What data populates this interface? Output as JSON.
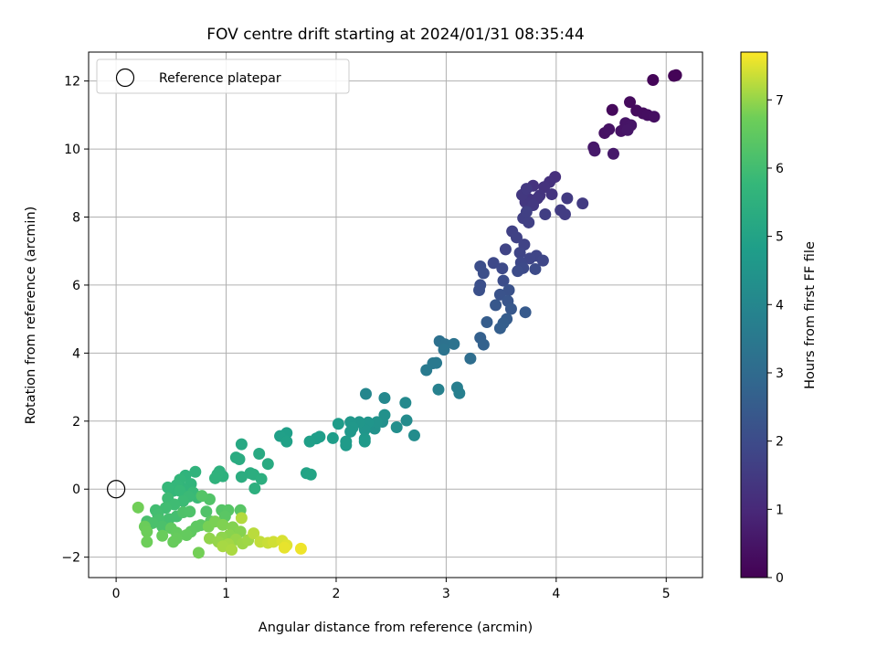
{
  "chart_data": {
    "type": "scatter",
    "title": "FOV centre drift starting at 2024/01/31 08:35:44",
    "xlabel": "Angular distance from reference (arcmin)",
    "ylabel": "Rotation from reference (arcmin)",
    "xlim": [
      -0.25,
      5.33
    ],
    "ylim": [
      -2.6,
      12.85
    ],
    "xticks": [
      0,
      1,
      2,
      3,
      4,
      5
    ],
    "yticks": [
      -2,
      0,
      2,
      4,
      6,
      8,
      10,
      12
    ],
    "xtick_labels": [
      "0",
      "1",
      "2",
      "3",
      "4",
      "5"
    ],
    "ytick_labels": [
      "−2",
      "0",
      "2",
      "4",
      "6",
      "8",
      "10",
      "12"
    ],
    "grid": true,
    "legend": {
      "position": "top-left",
      "entries": [
        "Reference platepar"
      ]
    },
    "reference_point": {
      "x": 0,
      "y": 0
    },
    "colorbar": {
      "label": "Hours from first FF file",
      "range": [
        0,
        7.7
      ],
      "ticks": [
        0,
        1,
        2,
        3,
        4,
        5,
        6,
        7
      ],
      "tick_labels": [
        "0",
        "1",
        "2",
        "3",
        "4",
        "5",
        "6",
        "7"
      ],
      "colormap": "viridis"
    },
    "points": [
      [
        5.07,
        12.15,
        0.05
      ],
      [
        5.09,
        12.17,
        0.08
      ],
      [
        4.88,
        12.03,
        0.1
      ],
      [
        4.51,
        11.15,
        0.2
      ],
      [
        4.67,
        11.38,
        0.25
      ],
      [
        4.73,
        11.13,
        0.28
      ],
      [
        4.79,
        11.05,
        0.3
      ],
      [
        4.83,
        11.0,
        0.32
      ],
      [
        4.89,
        10.95,
        0.35
      ],
      [
        4.44,
        10.47,
        0.4
      ],
      [
        4.48,
        10.58,
        0.42
      ],
      [
        4.59,
        10.53,
        0.45
      ],
      [
        4.63,
        10.76,
        0.48
      ],
      [
        4.68,
        10.7,
        0.5
      ],
      [
        4.65,
        10.56,
        0.52
      ],
      [
        4.34,
        10.05,
        0.55
      ],
      [
        4.35,
        9.95,
        0.58
      ],
      [
        4.52,
        9.86,
        0.6
      ],
      [
        3.99,
        9.18,
        1.2
      ],
      [
        3.94,
        9.03,
        1.22
      ],
      [
        3.89,
        8.88,
        1.25
      ],
      [
        3.79,
        8.92,
        1.28
      ],
      [
        3.85,
        8.63,
        1.3
      ],
      [
        3.96,
        8.67,
        1.32
      ],
      [
        3.75,
        8.53,
        1.35
      ],
      [
        3.83,
        8.55,
        1.37
      ],
      [
        3.72,
        8.44,
        1.4
      ],
      [
        3.69,
        8.65,
        1.42
      ],
      [
        3.73,
        8.83,
        1.45
      ],
      [
        3.79,
        8.35,
        1.47
      ],
      [
        4.1,
        8.55,
        1.5
      ],
      [
        4.24,
        8.4,
        1.52
      ],
      [
        4.04,
        8.2,
        1.55
      ],
      [
        4.08,
        8.08,
        1.57
      ],
      [
        3.9,
        8.08,
        1.6
      ],
      [
        3.7,
        7.97,
        1.62
      ],
      [
        3.75,
        7.84,
        1.65
      ],
      [
        3.73,
        8.15,
        1.67
      ],
      [
        3.6,
        7.58,
        1.7
      ],
      [
        3.64,
        7.4,
        1.72
      ],
      [
        3.71,
        7.19,
        1.75
      ],
      [
        3.54,
        7.05,
        1.77
      ],
      [
        3.67,
        6.95,
        1.8
      ],
      [
        3.82,
        6.86,
        1.82
      ],
      [
        3.76,
        6.78,
        1.85
      ],
      [
        3.88,
        6.72,
        1.87
      ],
      [
        3.68,
        6.66,
        1.9
      ],
      [
        3.43,
        6.65,
        1.92
      ],
      [
        3.51,
        6.49,
        1.95
      ],
      [
        3.7,
        6.5,
        1.97
      ],
      [
        3.81,
        6.47,
        2.0
      ],
      [
        3.65,
        6.41,
        2.02
      ],
      [
        3.52,
        6.13,
        2.05
      ],
      [
        3.31,
        6.55,
        2.07
      ],
      [
        3.34,
        6.35,
        2.1
      ],
      [
        3.31,
        6.0,
        2.12
      ],
      [
        3.3,
        5.85,
        2.15
      ],
      [
        3.57,
        5.85,
        2.2
      ],
      [
        3.49,
        5.72,
        2.25
      ],
      [
        3.56,
        5.53,
        2.3
      ],
      [
        3.45,
        5.41,
        2.35
      ],
      [
        3.59,
        5.3,
        2.4
      ],
      [
        3.72,
        5.2,
        2.45
      ],
      [
        3.55,
        5.0,
        2.5
      ],
      [
        3.37,
        4.91,
        2.55
      ],
      [
        3.52,
        4.88,
        2.57
      ],
      [
        3.49,
        4.73,
        2.6
      ],
      [
        3.31,
        4.45,
        2.65
      ],
      [
        3.34,
        4.25,
        2.7
      ],
      [
        3.22,
        3.84,
        3.1
      ],
      [
        2.94,
        4.35,
        3.2
      ],
      [
        2.99,
        4.26,
        3.25
      ],
      [
        3.07,
        4.27,
        3.3
      ],
      [
        2.98,
        4.1,
        3.35
      ],
      [
        2.88,
        3.7,
        3.5
      ],
      [
        2.91,
        3.71,
        3.52
      ],
      [
        2.82,
        3.5,
        3.55
      ],
      [
        3.1,
        2.99,
        3.7
      ],
      [
        3.12,
        2.82,
        3.75
      ],
      [
        2.93,
        2.93,
        3.8
      ],
      [
        2.27,
        2.8,
        4.0
      ],
      [
        2.44,
        2.68,
        4.05
      ],
      [
        2.63,
        2.54,
        4.1
      ],
      [
        2.64,
        2.02,
        4.15
      ],
      [
        2.71,
        1.58,
        4.2
      ],
      [
        2.55,
        1.82,
        4.25
      ],
      [
        2.42,
        1.98,
        4.3
      ],
      [
        2.44,
        2.18,
        4.35
      ],
      [
        2.35,
        1.78,
        4.4
      ],
      [
        2.37,
        1.97,
        4.45
      ],
      [
        2.29,
        1.96,
        4.5
      ],
      [
        2.26,
        1.75,
        4.52
      ],
      [
        2.21,
        1.97,
        4.55
      ],
      [
        2.13,
        1.97,
        4.57
      ],
      [
        2.15,
        1.81,
        4.6
      ],
      [
        2.13,
        1.69,
        4.62
      ],
      [
        2.26,
        1.48,
        4.65
      ],
      [
        2.26,
        1.4,
        4.67
      ],
      [
        2.09,
        1.29,
        4.7
      ],
      [
        2.09,
        1.4,
        4.72
      ],
      [
        2.02,
        1.92,
        4.75
      ],
      [
        1.97,
        1.5,
        4.77
      ],
      [
        1.85,
        1.54,
        4.8
      ],
      [
        1.82,
        1.49,
        4.82
      ],
      [
        1.76,
        1.4,
        4.85
      ],
      [
        1.55,
        1.65,
        4.87
      ],
      [
        1.49,
        1.56,
        4.9
      ],
      [
        1.55,
        1.4,
        4.92
      ],
      [
        1.73,
        0.47,
        5.0
      ],
      [
        1.77,
        0.43,
        5.05
      ],
      [
        1.14,
        1.32,
        5.2
      ],
      [
        1.3,
        1.04,
        5.25
      ],
      [
        1.38,
        0.74,
        5.27
      ],
      [
        1.09,
        0.93,
        5.3
      ],
      [
        1.12,
        0.88,
        5.32
      ],
      [
        1.22,
        0.47,
        5.35
      ],
      [
        1.14,
        0.36,
        5.37
      ],
      [
        1.25,
        0.43,
        5.4
      ],
      [
        1.32,
        0.3,
        5.42
      ],
      [
        1.26,
        0.02,
        5.45
      ],
      [
        0.94,
        0.52,
        5.5
      ],
      [
        0.97,
        0.38,
        5.52
      ],
      [
        0.92,
        0.43,
        5.55
      ],
      [
        0.9,
        0.32,
        5.57
      ],
      [
        0.72,
        0.51,
        5.6
      ],
      [
        0.63,
        0.4,
        5.62
      ],
      [
        0.68,
        0.15,
        5.65
      ],
      [
        0.61,
        0.02,
        5.67
      ],
      [
        0.58,
        0.28,
        5.7
      ],
      [
        0.55,
        0.12,
        5.72
      ],
      [
        0.52,
        -0.05,
        5.75
      ],
      [
        0.47,
        0.05,
        5.77
      ],
      [
        0.58,
        -0.05,
        5.8
      ],
      [
        0.7,
        -0.1,
        5.82
      ],
      [
        0.74,
        -0.25,
        5.85
      ],
      [
        0.66,
        -0.22,
        5.87
      ],
      [
        0.61,
        -0.35,
        5.9
      ],
      [
        0.47,
        -0.27,
        5.92
      ],
      [
        0.53,
        -0.45,
        5.95
      ],
      [
        0.45,
        -0.55,
        5.97
      ],
      [
        0.36,
        -0.62,
        6.0
      ],
      [
        0.38,
        -0.75,
        6.02
      ],
      [
        0.55,
        -0.8,
        6.05
      ],
      [
        0.48,
        -0.88,
        6.07
      ],
      [
        0.39,
        -0.9,
        6.1
      ],
      [
        0.28,
        -0.95,
        6.12
      ],
      [
        0.33,
        -1.0,
        6.15
      ],
      [
        0.42,
        -1.1,
        6.17
      ],
      [
        0.61,
        -0.68,
        6.2
      ],
      [
        0.67,
        -0.66,
        6.22
      ],
      [
        0.82,
        -0.66,
        6.25
      ],
      [
        0.85,
        -0.3,
        6.27
      ],
      [
        0.78,
        -0.2,
        6.3
      ],
      [
        0.96,
        -0.62,
        6.32
      ],
      [
        1.02,
        -0.62,
        6.35
      ],
      [
        1.13,
        -0.62,
        6.37
      ],
      [
        0.99,
        -0.8,
        6.4
      ],
      [
        0.86,
        -0.95,
        6.42
      ],
      [
        0.77,
        -1.06,
        6.45
      ],
      [
        0.73,
        -1.1,
        6.47
      ],
      [
        0.68,
        -1.25,
        6.5
      ],
      [
        0.5,
        -1.15,
        6.52
      ],
      [
        0.55,
        -1.28,
        6.55
      ],
      [
        0.64,
        -1.35,
        6.57
      ],
      [
        0.55,
        -1.45,
        6.6
      ],
      [
        0.52,
        -1.55,
        6.62
      ],
      [
        0.42,
        -1.37,
        6.65
      ],
      [
        0.26,
        -1.1,
        6.67
      ],
      [
        0.28,
        -1.25,
        6.7
      ],
      [
        0.28,
        -1.55,
        6.72
      ],
      [
        0.2,
        -0.54,
        6.75
      ],
      [
        0.75,
        -1.87,
        6.77
      ],
      [
        0.84,
        -1.1,
        6.8
      ],
      [
        0.9,
        -0.95,
        6.82
      ],
      [
        0.97,
        -1.05,
        6.85
      ],
      [
        1.06,
        -1.12,
        6.87
      ],
      [
        1.13,
        -1.25,
        6.9
      ],
      [
        1.03,
        -1.35,
        6.92
      ],
      [
        0.96,
        -1.42,
        6.95
      ],
      [
        0.85,
        -1.45,
        6.97
      ],
      [
        0.93,
        -1.55,
        7.0
      ],
      [
        1.09,
        -1.48,
        7.02
      ],
      [
        1.15,
        -1.6,
        7.05
      ],
      [
        1.2,
        -1.5,
        7.07
      ],
      [
        1.02,
        -1.62,
        7.1
      ],
      [
        0.97,
        -1.68,
        7.12
      ],
      [
        1.05,
        -1.78,
        7.15
      ],
      [
        1.14,
        -0.85,
        7.2
      ],
      [
        1.25,
        -1.3,
        7.25
      ],
      [
        1.31,
        -1.55,
        7.3
      ],
      [
        1.38,
        -1.58,
        7.35
      ],
      [
        1.43,
        -1.55,
        7.4
      ],
      [
        1.51,
        -1.52,
        7.45
      ],
      [
        1.55,
        -1.65,
        7.5
      ],
      [
        1.53,
        -1.72,
        7.55
      ],
      [
        1.68,
        -1.75,
        7.6
      ]
    ]
  }
}
